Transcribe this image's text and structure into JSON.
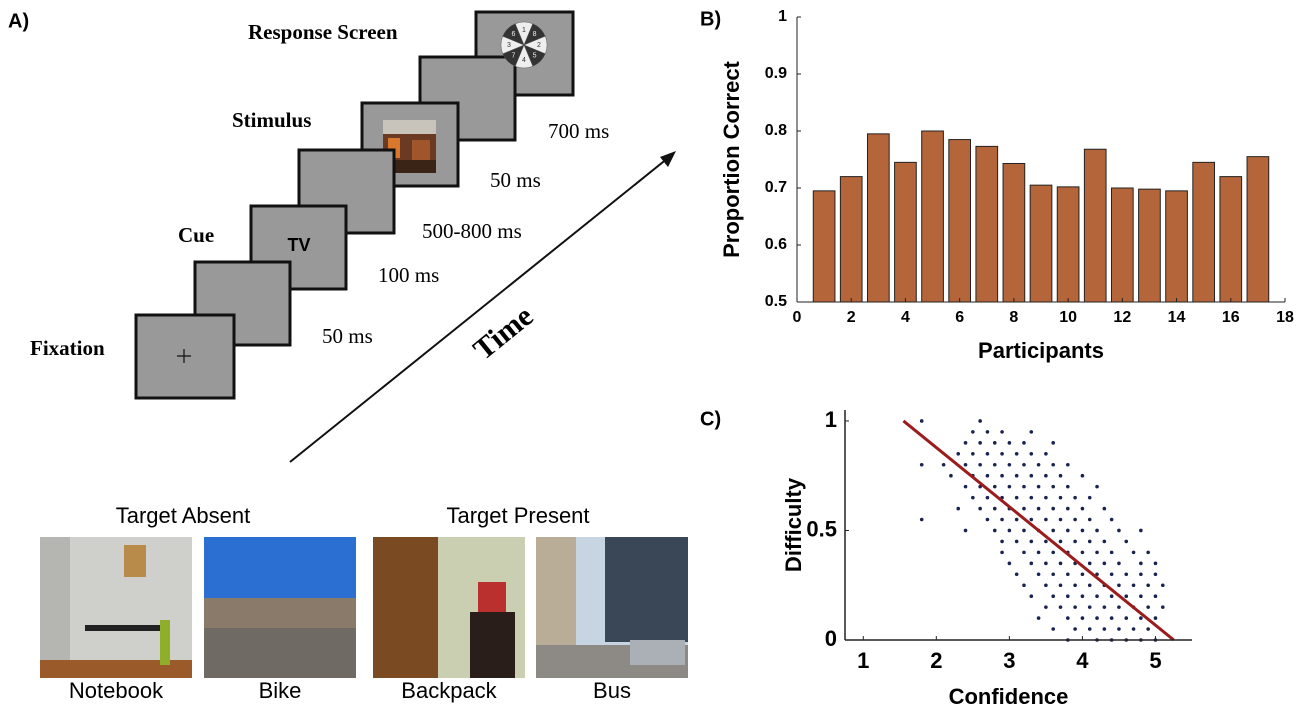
{
  "panel_a": {
    "label": "A)",
    "screen_labels": [
      "Fixation",
      "Cue",
      "Stimulus",
      "Response Screen"
    ],
    "durations": [
      "50 ms",
      "100 ms",
      "500-800 ms",
      "50 ms",
      "700 ms"
    ],
    "cue_text": "TV",
    "response_wheel_labels": [
      "1",
      "8",
      "2",
      "5",
      "4",
      "7",
      "3",
      "6"
    ],
    "time_label": "Time",
    "example_groups": [
      {
        "title": "Target Absent",
        "items": [
          "Notebook",
          "Bike"
        ]
      },
      {
        "title": "Target Present",
        "items": [
          "Backpack",
          "Bus"
        ]
      }
    ]
  },
  "chart_data": [
    {
      "type": "bar",
      "label": "B)",
      "x_label": "Participants",
      "y_label": "Proportion Correct",
      "x": [
        1,
        2,
        3,
        4,
        5,
        6,
        7,
        8,
        9,
        10,
        11,
        12,
        13,
        14,
        15,
        16,
        17
      ],
      "values": [
        0.695,
        0.72,
        0.795,
        0.745,
        0.8,
        0.785,
        0.773,
        0.743,
        0.705,
        0.702,
        0.768,
        0.7,
        0.698,
        0.695,
        0.745,
        0.72,
        0.755
      ],
      "color": "#b5653a",
      "xlim": [
        0,
        18
      ],
      "xticks": [
        0,
        2,
        4,
        6,
        8,
        10,
        12,
        14,
        16,
        18
      ],
      "ylim": [
        0.5,
        1
      ],
      "yticks": [
        0.5,
        0.6,
        0.7,
        0.8,
        0.9,
        1
      ]
    },
    {
      "type": "scatter",
      "label": "C)",
      "x_label": "Confidence",
      "y_label": "Difficulty",
      "color": "#1a2350",
      "x": [
        1.8,
        2.6,
        2.5,
        2.7,
        2.9,
        3.3,
        2.4,
        2.6,
        2.8,
        3,
        3.2,
        3.6,
        2.3,
        2.5,
        2.7,
        2.9,
        3.1,
        3.3,
        3.5,
        1.8,
        2.1,
        2.4,
        2.6,
        2.8,
        3,
        3.2,
        3.4,
        3.6,
        3.8,
        2.2,
        2.5,
        2.7,
        2.9,
        3.1,
        3.3,
        3.5,
        3.7,
        4,
        2.4,
        2.6,
        2.8,
        3,
        3.2,
        3.4,
        3.6,
        3.8,
        4.2,
        2.5,
        2.7,
        2.9,
        3.1,
        3.3,
        3.5,
        3.7,
        3.9,
        4.1,
        2.3,
        2.6,
        2.8,
        3,
        3.2,
        3.4,
        3.6,
        3.8,
        4,
        4.3,
        1.8,
        2.7,
        2.9,
        3.1,
        3.3,
        3.5,
        3.7,
        3.9,
        4.1,
        4.4,
        2.4,
        2.8,
        3,
        3.2,
        3.4,
        3.6,
        3.8,
        4,
        4.2,
        4.5,
        4.8,
        2.9,
        3.1,
        3.3,
        3.5,
        3.7,
        3.9,
        4.1,
        4.3,
        4.6,
        2.9,
        3.2,
        3.4,
        3.6,
        3.8,
        4,
        4.2,
        4.4,
        4.7,
        4.9,
        3,
        3.3,
        3.5,
        3.7,
        3.9,
        4.1,
        4.3,
        4.5,
        4.8,
        5,
        3.1,
        3.4,
        3.6,
        3.8,
        4,
        4.2,
        4.4,
        4.6,
        4.8,
        5,
        3.2,
        3.5,
        3.7,
        3.9,
        4.1,
        4.3,
        4.5,
        4.7,
        4.9,
        5.1,
        3.3,
        3.6,
        3.8,
        4,
        4.2,
        4.4,
        4.6,
        4.8,
        5,
        3.5,
        3.7,
        3.9,
        4.1,
        4.3,
        4.5,
        4.7,
        4.9,
        5.1,
        3.4,
        3.8,
        4,
        4.2,
        4.4,
        4.6,
        4.8,
        5,
        3.6,
        3.9,
        4.1,
        4.3,
        4.5,
        4.7,
        4.9,
        3.8,
        4.2,
        4.4,
        4.6,
        4.8,
        5
      ],
      "values": [
        1,
        1,
        0.95,
        0.95,
        0.95,
        0.95,
        0.9,
        0.9,
        0.9,
        0.9,
        0.9,
        0.9,
        0.85,
        0.85,
        0.85,
        0.85,
        0.85,
        0.85,
        0.85,
        0.8,
        0.8,
        0.8,
        0.8,
        0.8,
        0.8,
        0.8,
        0.8,
        0.8,
        0.8,
        0.75,
        0.75,
        0.75,
        0.75,
        0.75,
        0.75,
        0.75,
        0.75,
        0.75,
        0.7,
        0.7,
        0.7,
        0.7,
        0.7,
        0.7,
        0.7,
        0.7,
        0.7,
        0.65,
        0.65,
        0.65,
        0.65,
        0.65,
        0.65,
        0.65,
        0.65,
        0.65,
        0.6,
        0.6,
        0.6,
        0.6,
        0.6,
        0.6,
        0.6,
        0.6,
        0.6,
        0.6,
        0.55,
        0.55,
        0.55,
        0.55,
        0.55,
        0.55,
        0.55,
        0.55,
        0.55,
        0.55,
        0.5,
        0.5,
        0.5,
        0.5,
        0.5,
        0.5,
        0.5,
        0.5,
        0.5,
        0.5,
        0.5,
        0.45,
        0.45,
        0.45,
        0.45,
        0.45,
        0.45,
        0.45,
        0.45,
        0.45,
        0.4,
        0.4,
        0.4,
        0.4,
        0.4,
        0.4,
        0.4,
        0.4,
        0.4,
        0.4,
        0.35,
        0.35,
        0.35,
        0.35,
        0.35,
        0.35,
        0.35,
        0.35,
        0.35,
        0.35,
        0.3,
        0.3,
        0.3,
        0.3,
        0.3,
        0.3,
        0.3,
        0.3,
        0.3,
        0.3,
        0.25,
        0.25,
        0.25,
        0.25,
        0.25,
        0.25,
        0.25,
        0.25,
        0.25,
        0.25,
        0.2,
        0.2,
        0.2,
        0.2,
        0.2,
        0.2,
        0.2,
        0.2,
        0.2,
        0.15,
        0.15,
        0.15,
        0.15,
        0.15,
        0.15,
        0.15,
        0.15,
        0.15,
        0.1,
        0.1,
        0.1,
        0.1,
        0.1,
        0.1,
        0.1,
        0.1,
        0.05,
        0.05,
        0.05,
        0.05,
        0.05,
        0.05,
        0.05,
        0,
        0,
        0,
        0,
        0,
        0
      ],
      "fit": {
        "x": [
          1.55,
          5.25
        ],
        "values": [
          1,
          0
        ],
        "color": "#9b1c1c"
      },
      "xlim": [
        0.75,
        5.5
      ],
      "xticks": [
        1,
        2,
        3,
        4,
        5
      ],
      "ylim": [
        0,
        1.05
      ],
      "yticks": [
        0,
        0.5,
        1
      ]
    }
  ]
}
